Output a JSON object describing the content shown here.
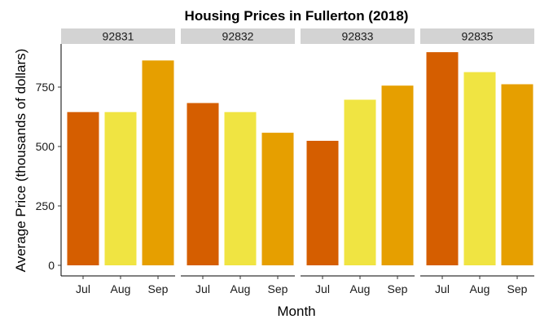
{
  "chart_data": {
    "type": "bar",
    "title": "Housing Prices in Fullerton (2018)",
    "xlabel": "Month",
    "ylabel": "Average Price (thousands of dollars)",
    "ylim": [
      0,
      920
    ],
    "yticks": [
      0,
      250,
      500,
      750
    ],
    "grid": false,
    "legend": "none",
    "categories": [
      "Jul",
      "Aug",
      "Sep"
    ],
    "colors": {
      "Jul": "#D55E00",
      "Aug": "#F0E442",
      "Sep": "#E69F00"
    },
    "strip_color": "#D3D3D3",
    "facets": [
      {
        "name": "92831",
        "values": [
          645,
          645,
          862
        ]
      },
      {
        "name": "92832",
        "values": [
          683,
          645,
          558
        ]
      },
      {
        "name": "92833",
        "values": [
          524,
          697,
          756
        ]
      },
      {
        "name": "92835",
        "values": [
          897,
          813,
          762
        ]
      }
    ]
  }
}
